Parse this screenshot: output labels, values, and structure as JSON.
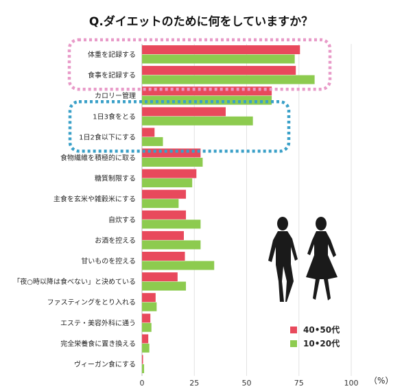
{
  "chart_data": {
    "type": "bar",
    "orientation": "horizontal",
    "title": "Q.ダイエットのために何をしていますか？",
    "unit": "（%）",
    "xlim": [
      0,
      100
    ],
    "x_ticks": [
      "0",
      "25",
      "50",
      "75",
      "100"
    ],
    "grid": true,
    "legend_placement": "bottom-right",
    "categories": [
      "体重を記録する",
      "食事を記録する",
      "カロリー管理",
      "1日3食をとる",
      "1日2食以下にする",
      "食物繊維を積極的に取る",
      "糖質制限する",
      "主食を玄米や雑穀米にする",
      "自炊する",
      "お酒を控える",
      "甘いものを控える",
      "「夜○時以降は食べない」と決めている",
      "ファスティングをとり入れる",
      "エステ・美容外科に通う",
      "完全栄養食に置き換える",
      "ヴィーガン食にする"
    ],
    "series": [
      {
        "name": "40•50代",
        "color": "#e8495c",
        "values": [
          75.5,
          73.5,
          62,
          40,
          6,
          28,
          26,
          21,
          21,
          20,
          20.5,
          17,
          6.5,
          4,
          3,
          0.5
        ]
      },
      {
        "name": "10•20代",
        "color": "#8dcb4f",
        "values": [
          73,
          82.5,
          62,
          53,
          10,
          29,
          24,
          17.5,
          28,
          28,
          34.5,
          21,
          7,
          4.5,
          3.5,
          1
        ]
      }
    ],
    "highlight_groups": [
      {
        "style": "pink-dotted",
        "color": "#e89ac8",
        "categories": [
          "体重を記録する",
          "食事を記録する"
        ]
      },
      {
        "style": "blue-dotted",
        "color": "#3aa0c8",
        "categories": [
          "1日3食をとる",
          "1日2食以下にする"
        ]
      }
    ]
  },
  "decorations": {
    "silhouette_icon": "two-women-silhouette-icon"
  }
}
